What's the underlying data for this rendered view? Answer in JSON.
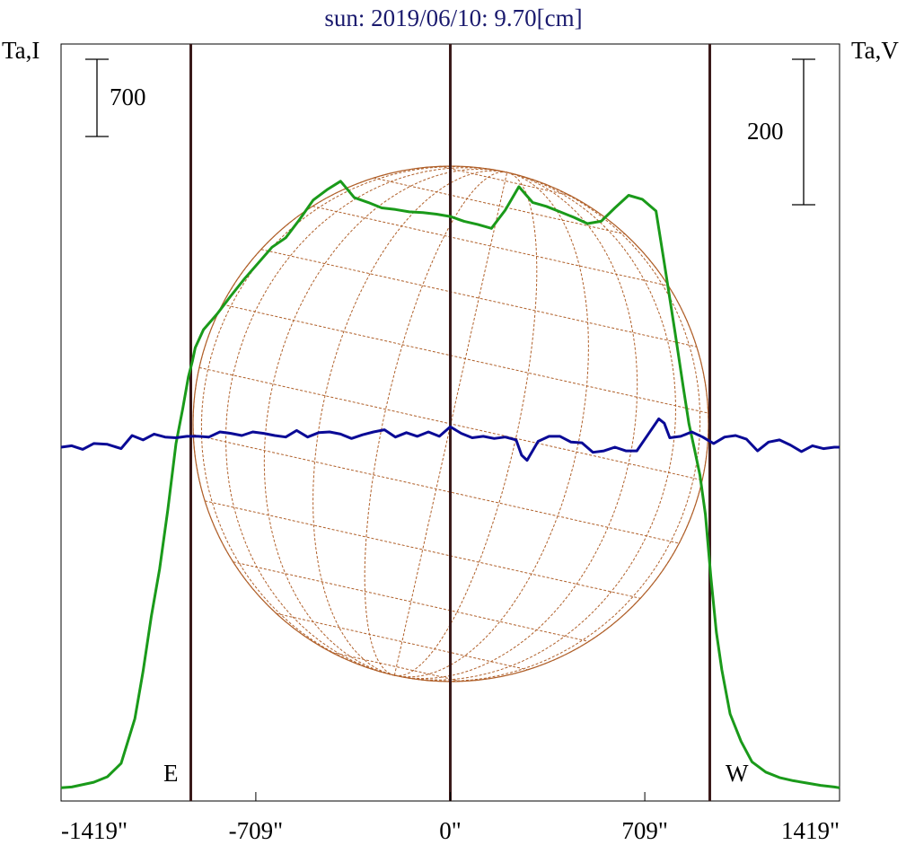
{
  "title": "sun: 2019/06/10: 9.70[cm]",
  "left_axis_label": "Ta,I",
  "right_axis_label": "Ta,V",
  "left_scale_label": "700",
  "right_scale_label": "200",
  "east_label": "E",
  "west_label": "W",
  "colors": {
    "title": "#1a1a6e",
    "intensity": "#1a9a1a",
    "polarization": "#0a0a96",
    "limb_lines": "#3a1a1a",
    "grid": "#b0602a",
    "frame": "#000000"
  },
  "chart_data": {
    "type": "line",
    "x_unit": "arcsec",
    "xlim": [
      -1419,
      1419
    ],
    "x_ticks": [
      {
        "value": -1419,
        "label": "-1419\""
      },
      {
        "value": -709,
        "label": "-709\""
      },
      {
        "value": 0,
        "label": "0\""
      },
      {
        "value": 709,
        "label": "709\""
      },
      {
        "value": 1419,
        "label": "1419\""
      }
    ],
    "vertical_lines_x": [
      -946,
      0,
      946
    ],
    "series": [
      {
        "axis": "left",
        "color": "#1a9a1a",
        "x": [
          -1419,
          -1380,
          -1300,
          -1250,
          -1200,
          -1150,
          -1120,
          -1090,
          -1060,
          -1030,
          -1000,
          -975,
          -955,
          -940,
          -930,
          -900,
          -850,
          -800,
          -750,
          -700,
          -650,
          -600,
          -550,
          -500,
          -450,
          -400,
          -350,
          -300,
          -250,
          -200,
          -150,
          -100,
          -50,
          0,
          50,
          100,
          150,
          200,
          250,
          300,
          350,
          400,
          450,
          500,
          550,
          600,
          650,
          700,
          750,
          780,
          820,
          850,
          870,
          890,
          910,
          930,
          950,
          970,
          990,
          1020,
          1060,
          1100,
          1150,
          1200,
          1250,
          1300,
          1350,
          1400,
          1419
        ],
        "y": [
          20,
          30,
          90,
          160,
          330,
          900,
          1500,
          2200,
          2800,
          3550,
          4400,
          4850,
          5250,
          5450,
          5620,
          5850,
          6050,
          6280,
          6500,
          6700,
          6900,
          7020,
          7250,
          7500,
          7630,
          7740,
          7530,
          7470,
          7400,
          7380,
          7350,
          7340,
          7320,
          7290,
          7230,
          7190,
          7140,
          7370,
          7670,
          7470,
          7420,
          7350,
          7280,
          7200,
          7230,
          7400,
          7560,
          7510,
          7360,
          6700,
          5800,
          5100,
          4650,
          4330,
          4000,
          3500,
          2700,
          2000,
          1520,
          960,
          610,
          350,
          220,
          150,
          110,
          80,
          50,
          30,
          20
        ]
      },
      {
        "axis": "right",
        "color": "#0a0a96",
        "x": [
          -1419,
          -1380,
          -1340,
          -1300,
          -1250,
          -1200,
          -1160,
          -1120,
          -1080,
          -1040,
          -1000,
          -960,
          -920,
          -880,
          -840,
          -800,
          -760,
          -720,
          -680,
          -640,
          -600,
          -560,
          -520,
          -480,
          -440,
          -400,
          -360,
          -320,
          -280,
          -240,
          -200,
          -160,
          -120,
          -80,
          -40,
          0,
          40,
          80,
          120,
          160,
          200,
          240,
          260,
          280,
          300,
          320,
          360,
          400,
          440,
          480,
          520,
          560,
          600,
          640,
          680,
          720,
          760,
          780,
          800,
          840,
          880,
          920,
          960,
          1000,
          1040,
          1080,
          1120,
          1160,
          1200,
          1240,
          1280,
          1320,
          1360,
          1400,
          1419
        ],
        "y": [
          0,
          2,
          -3,
          5,
          4,
          -2,
          16,
          10,
          18,
          14,
          13,
          15,
          15,
          14,
          21,
          19,
          16,
          21,
          19,
          16,
          14,
          23,
          14,
          20,
          21,
          18,
          12,
          17,
          21,
          24,
          14,
          20,
          15,
          21,
          15,
          28,
          19,
          13,
          15,
          12,
          14,
          10,
          -11,
          -18,
          -5,
          8,
          15,
          15,
          7,
          6,
          -7,
          -5,
          0,
          -5,
          -5,
          17,
          39,
          33,
          13,
          15,
          21,
          14,
          5,
          14,
          16,
          11,
          -5,
          7,
          10,
          3,
          -6,
          2,
          -2,
          0,
          0
        ]
      }
    ],
    "left_ylim": [
      0,
      9590
    ],
    "right_ylim": [
      -420,
      420
    ]
  }
}
